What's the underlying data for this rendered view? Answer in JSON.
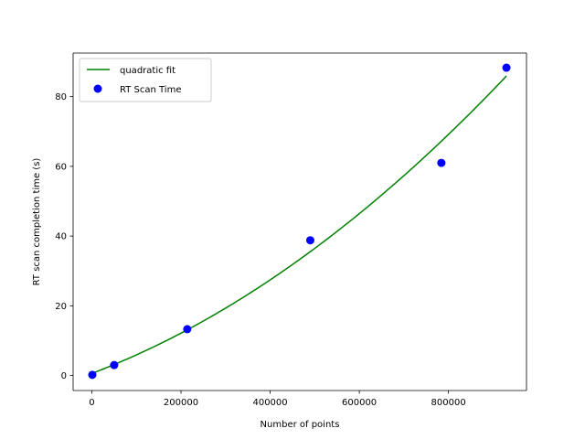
{
  "chart_data": {
    "type": "scatter",
    "xlabel": "Number of points",
    "ylabel": "RT scan completion time (s)",
    "xlim": [
      -42000,
      975000
    ],
    "ylim": [
      -4.3,
      92.5
    ],
    "xticks": [
      0,
      200000,
      400000,
      600000,
      800000
    ],
    "yticks": [
      0,
      20,
      40,
      60,
      80
    ],
    "grid": false,
    "legend_position": "top-left",
    "series": [
      {
        "name": "quadratic fit",
        "kind": "line",
        "color": "#008000",
        "coefficients": {
          "a": 4.65e-11,
          "b": 4.85e-05,
          "c": 0.6
        },
        "x_range": [
          1000,
          930000
        ]
      },
      {
        "name": "RT Scan Time",
        "kind": "scatter",
        "color": "#0000ff",
        "x": [
          1000,
          50000,
          214000,
          490000,
          784000,
          930000
        ],
        "y": [
          0.2,
          3.0,
          13.3,
          38.8,
          61.0,
          88.3
        ]
      }
    ]
  }
}
